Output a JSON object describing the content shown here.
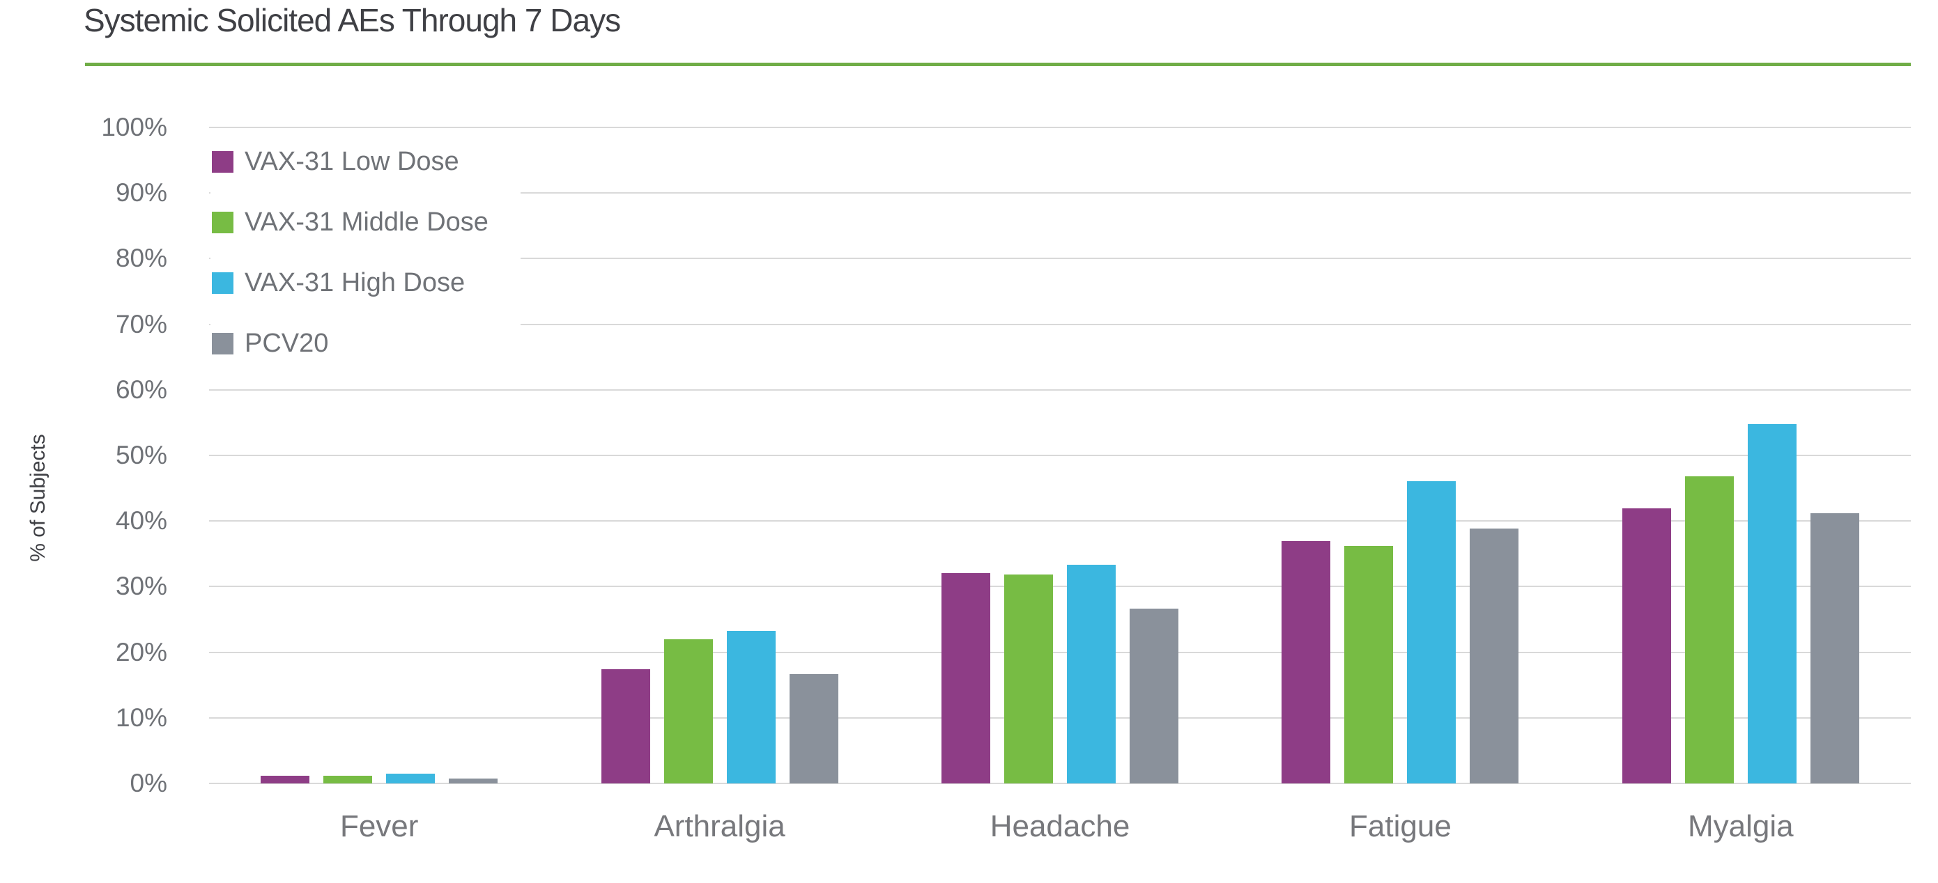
{
  "title": "Systemic Solicited AEs Through 7 Days",
  "accent_colors": {
    "title_rule_green": "#70AD47",
    "gridline": "#D9D9D9",
    "title_text": "#3F4045",
    "axis_text": "#6F7277",
    "category_text": "#77787C"
  },
  "chart_data": {
    "type": "bar",
    "title": "Systemic Solicited AEs Through 7 Days",
    "xlabel": "",
    "ylabel": "% of Subjects",
    "ylim": [
      0,
      100
    ],
    "ytick_step": 10,
    "ytick_labels": [
      "0%",
      "10%",
      "20%",
      "30%",
      "40%",
      "50%",
      "60%",
      "70%",
      "80%",
      "90%",
      "100%"
    ],
    "grid": true,
    "legend_position": "top-left-inside",
    "categories": [
      "Fever",
      "Arthralgia",
      "Headache",
      "Fatigue",
      "Myalgia"
    ],
    "series": [
      {
        "name": "VAX-31 Low Dose",
        "color": "#8E3D86",
        "values": [
          1.2,
          17.4,
          32.1,
          36.9,
          41.9
        ]
      },
      {
        "name": "VAX-31 Middle Dose",
        "color": "#77BC44",
        "values": [
          1.2,
          22.0,
          31.9,
          36.2,
          46.8
        ]
      },
      {
        "name": "VAX-31 High Dose",
        "color": "#3BB7E0",
        "values": [
          1.5,
          23.3,
          33.3,
          46.1,
          54.8
        ]
      },
      {
        "name": "PCV20",
        "color": "#8A919B",
        "values": [
          0.7,
          16.7,
          26.7,
          38.9,
          41.2
        ]
      }
    ]
  }
}
